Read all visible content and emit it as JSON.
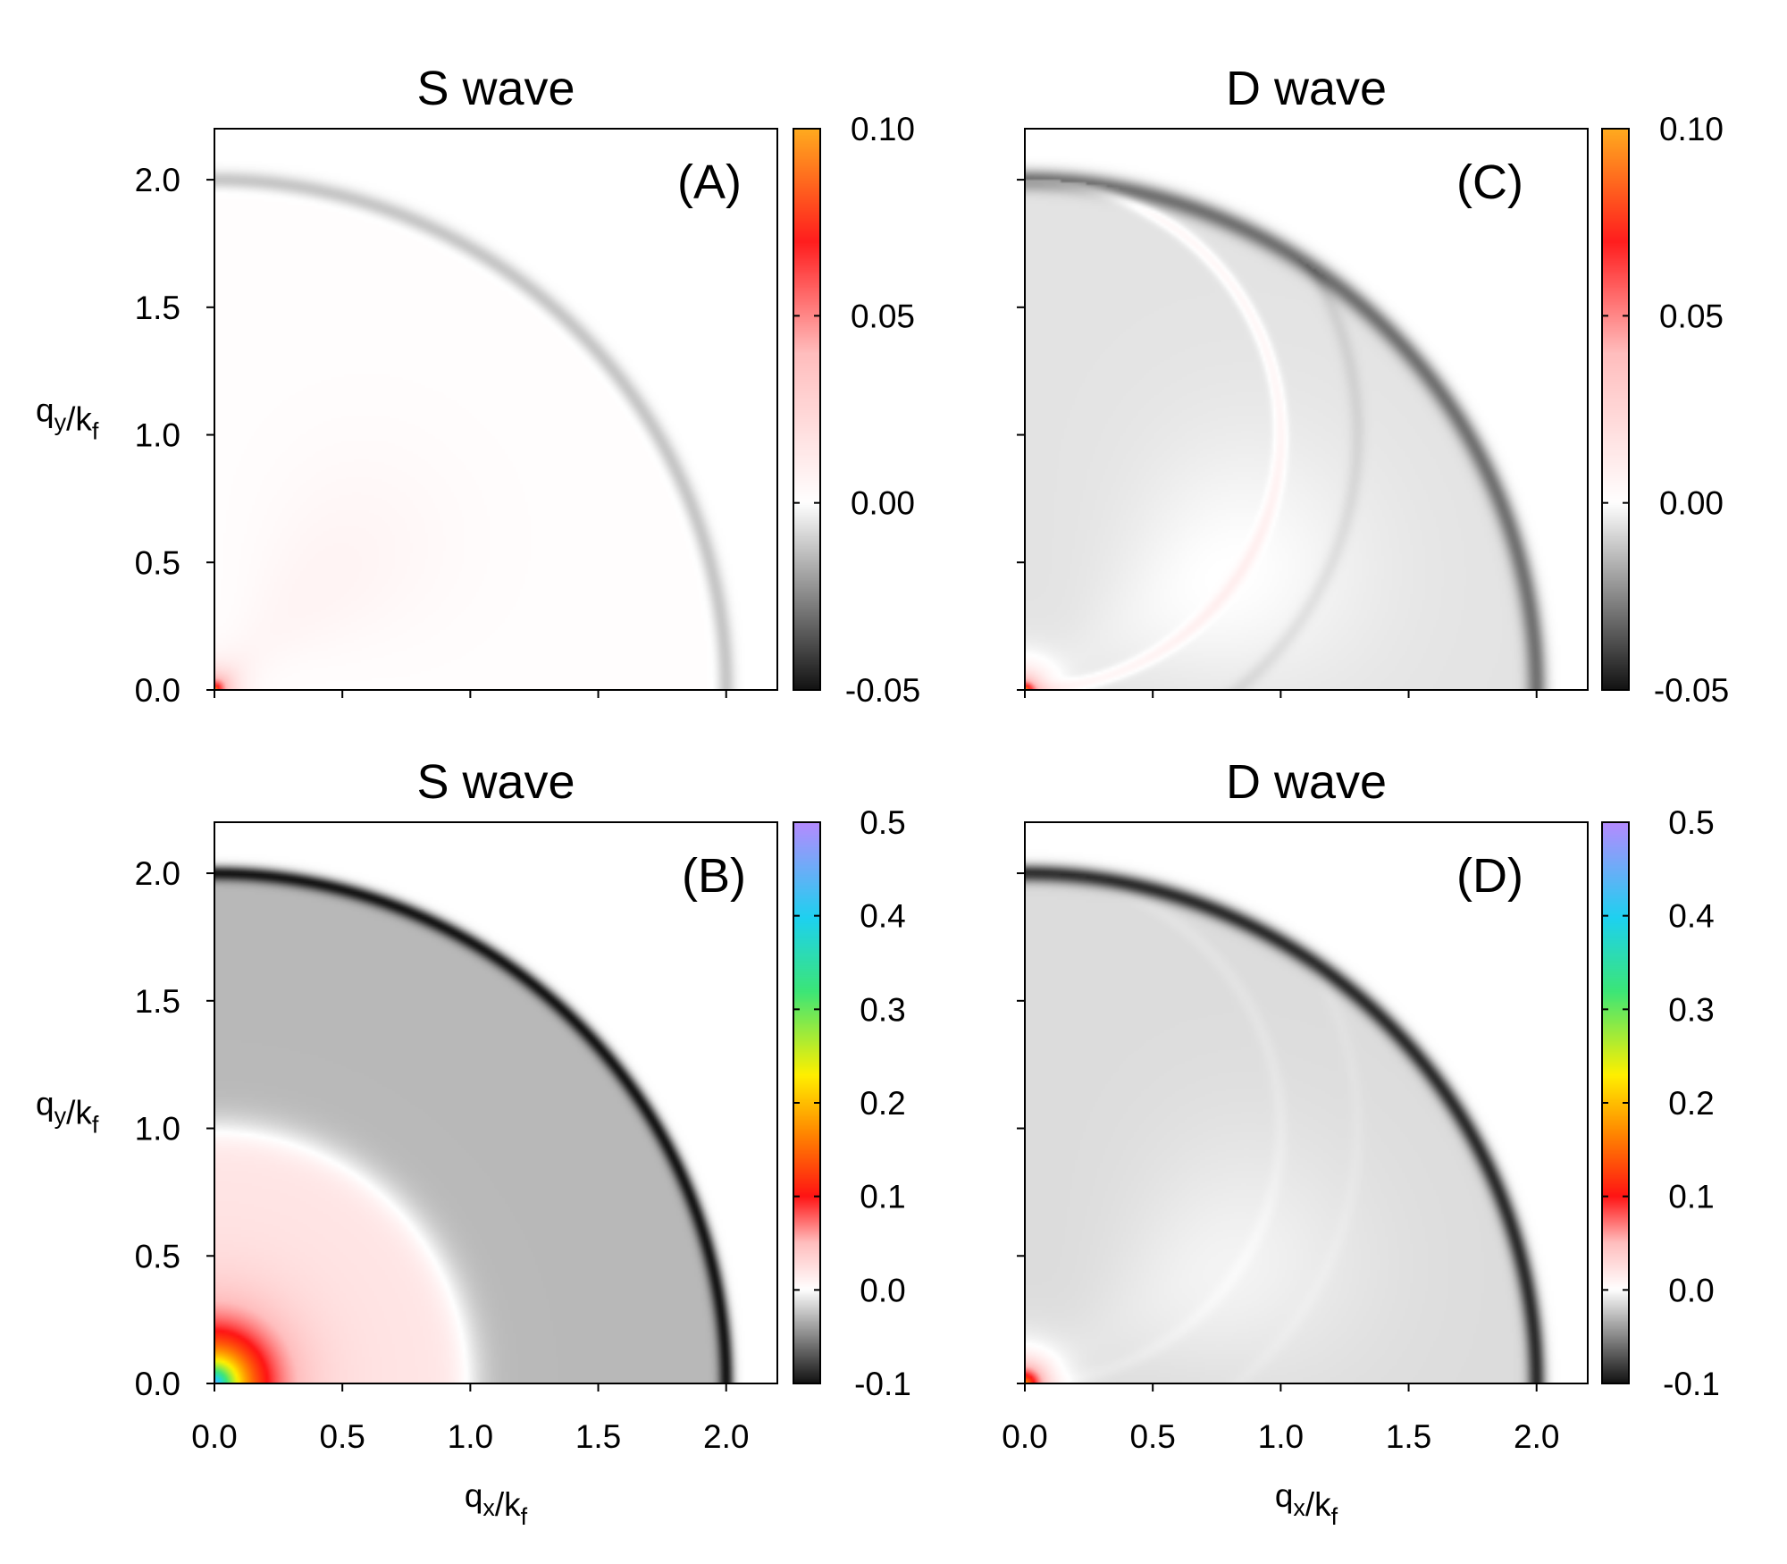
{
  "chart_data": [
    {
      "type": "heatmap",
      "panel": "(A)",
      "title": "S wave",
      "xlabel": "q_x/k_f",
      "ylabel": "q_y/k_f",
      "xlim": [
        0,
        2.2
      ],
      "ylim": [
        0,
        2.2
      ],
      "xticks": [
        "0.0",
        "0.5",
        "1.0",
        "1.5",
        "2.0"
      ],
      "yticks": [
        "0.0",
        "0.5",
        "1.0",
        "1.5",
        "2.0"
      ],
      "show_x_tick_labels": false,
      "show_y_tick_labels": true,
      "colorbar": {
        "min": -0.05,
        "max": 0.1,
        "ticks": [
          "-0.05",
          "0.00",
          "0.05",
          "0.10"
        ],
        "palette": "gray-white-red-orange"
      },
      "features": {
        "ring_radius": 2.0,
        "ring_value": -0.012,
        "ring_width": 0.035,
        "fill_inside": 0.001,
        "fill_outside": 0.0,
        "origin_peak": 0.1,
        "origin_decay": 0.05,
        "extra_arcs": [],
        "lobe": {
          "value": 0.006,
          "angle_deg": 45,
          "radius": 0.6
        }
      }
    },
    {
      "type": "heatmap",
      "panel": "(B)",
      "title": "S wave",
      "xlabel": "q_x/k_f",
      "ylabel": "q_y/k_f",
      "xlim": [
        0,
        2.2
      ],
      "ylim": [
        0,
        2.2
      ],
      "xticks": [
        "0.0",
        "0.5",
        "1.0",
        "1.5",
        "2.0"
      ],
      "yticks": [
        "0.0",
        "0.5",
        "1.0",
        "1.5",
        "2.0"
      ],
      "show_x_tick_labels": true,
      "show_y_tick_labels": true,
      "colorbar": {
        "min": -0.1,
        "max": 0.5,
        "ticks": [
          "-0.1",
          "0.0",
          "0.1",
          "0.2",
          "0.3",
          "0.4",
          "0.5"
        ],
        "palette": "gray-white-red-yellow-cyan-violet"
      },
      "features": {
        "ring_radius": 2.0,
        "ring_value": -0.1,
        "ring_width": 0.03,
        "fill_inside": -0.03,
        "fill_outside": 0.0,
        "origin_peak": 0.45,
        "origin_decay": 0.12,
        "inner_disk": {
          "radius": 1.0,
          "value": 0.02
        },
        "extra_arcs": [],
        "lobe": {
          "value": 0.0,
          "angle_deg": 45,
          "radius": 0.6
        }
      }
    },
    {
      "type": "heatmap",
      "panel": "(C)",
      "title": "D wave",
      "xlabel": "q_x/k_f",
      "ylabel": "q_y/k_f",
      "xlim": [
        0,
        2.2
      ],
      "ylim": [
        0,
        2.2
      ],
      "xticks": [
        "0.0",
        "0.5",
        "1.0",
        "1.5",
        "2.0"
      ],
      "yticks": [
        "0.0",
        "0.5",
        "1.0",
        "1.5",
        "2.0"
      ],
      "show_x_tick_labels": false,
      "show_y_tick_labels": false,
      "colorbar": {
        "min": -0.05,
        "max": 0.1,
        "ticks": [
          "-0.05",
          "0.00",
          "0.05",
          "0.10"
        ],
        "palette": "gray-white-red-orange"
      },
      "features": {
        "ring_radius": 2.0,
        "ring_value": -0.03,
        "ring_width": 0.04,
        "fill_inside": -0.006,
        "fill_outside": 0.0,
        "origin_peak": 0.1,
        "origin_decay": 0.05,
        "extra_arcs": [
          {
            "cx": 0.0,
            "cy": 1.0,
            "r": 1.0,
            "value": 0.01,
            "width": 0.025
          },
          {
            "cx": 0.0,
            "cy": 1.0,
            "r": 1.3,
            "value": -0.004,
            "width": 0.03
          }
        ],
        "lobe": {
          "value": 0.006,
          "angle_deg": 30,
          "radius": 0.9
        }
      }
    },
    {
      "type": "heatmap",
      "panel": "(D)",
      "title": "D wave",
      "xlabel": "q_x/k_f",
      "ylabel": "q_y/k_f",
      "xlim": [
        0,
        2.2
      ],
      "ylim": [
        0,
        2.2
      ],
      "xticks": [
        "0.0",
        "0.5",
        "1.0",
        "1.5",
        "2.0"
      ],
      "yticks": [
        "0.0",
        "0.5",
        "1.0",
        "1.5",
        "2.0"
      ],
      "show_x_tick_labels": true,
      "show_y_tick_labels": false,
      "colorbar": {
        "min": -0.1,
        "max": 0.5,
        "ticks": [
          "-0.1",
          "0.0",
          "0.1",
          "0.2",
          "0.3",
          "0.4",
          "0.5"
        ],
        "palette": "gray-white-red-yellow-cyan-violet"
      },
      "features": {
        "ring_radius": 2.0,
        "ring_value": -0.09,
        "ring_width": 0.035,
        "fill_inside": -0.015,
        "fill_outside": 0.0,
        "origin_peak": 0.2,
        "origin_decay": 0.06,
        "extra_arcs": [
          {
            "cx": 0.0,
            "cy": 1.0,
            "r": 1.0,
            "value": 0.003,
            "width": 0.03
          },
          {
            "cx": 0.0,
            "cy": 1.0,
            "r": 1.3,
            "value": 0.002,
            "width": 0.03
          }
        ],
        "lobe": {
          "value": 0.01,
          "angle_deg": 30,
          "radius": 0.9
        }
      }
    }
  ]
}
